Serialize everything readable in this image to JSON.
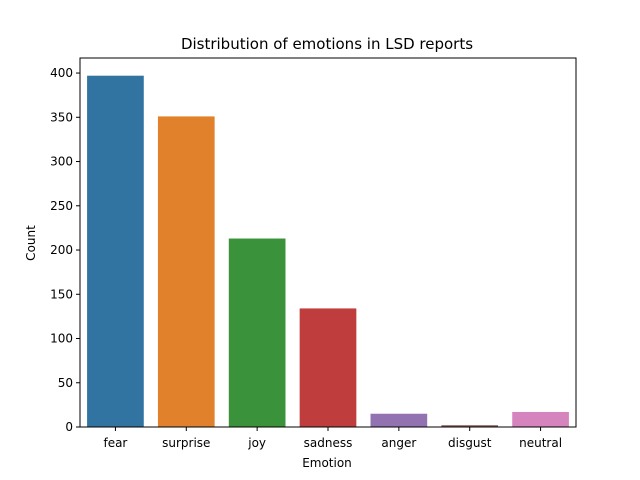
{
  "chart_data": {
    "type": "bar",
    "title": "Distribution of emotions in LSD reports",
    "xlabel": "Emotion",
    "ylabel": "Count",
    "categories": [
      "fear",
      "surprise",
      "joy",
      "sadness",
      "anger",
      "disgust",
      "neutral"
    ],
    "values": [
      397,
      351,
      213,
      134,
      15,
      2,
      17
    ],
    "colors": [
      "#3274a1",
      "#e1812c",
      "#3a923a",
      "#c03d3e",
      "#9372b2",
      "#845b53",
      "#d684bd"
    ],
    "ylim": [
      0,
      417
    ],
    "yticks": [
      0,
      50,
      100,
      150,
      200,
      250,
      300,
      350,
      400
    ],
    "grid": false,
    "legend": "none"
  }
}
